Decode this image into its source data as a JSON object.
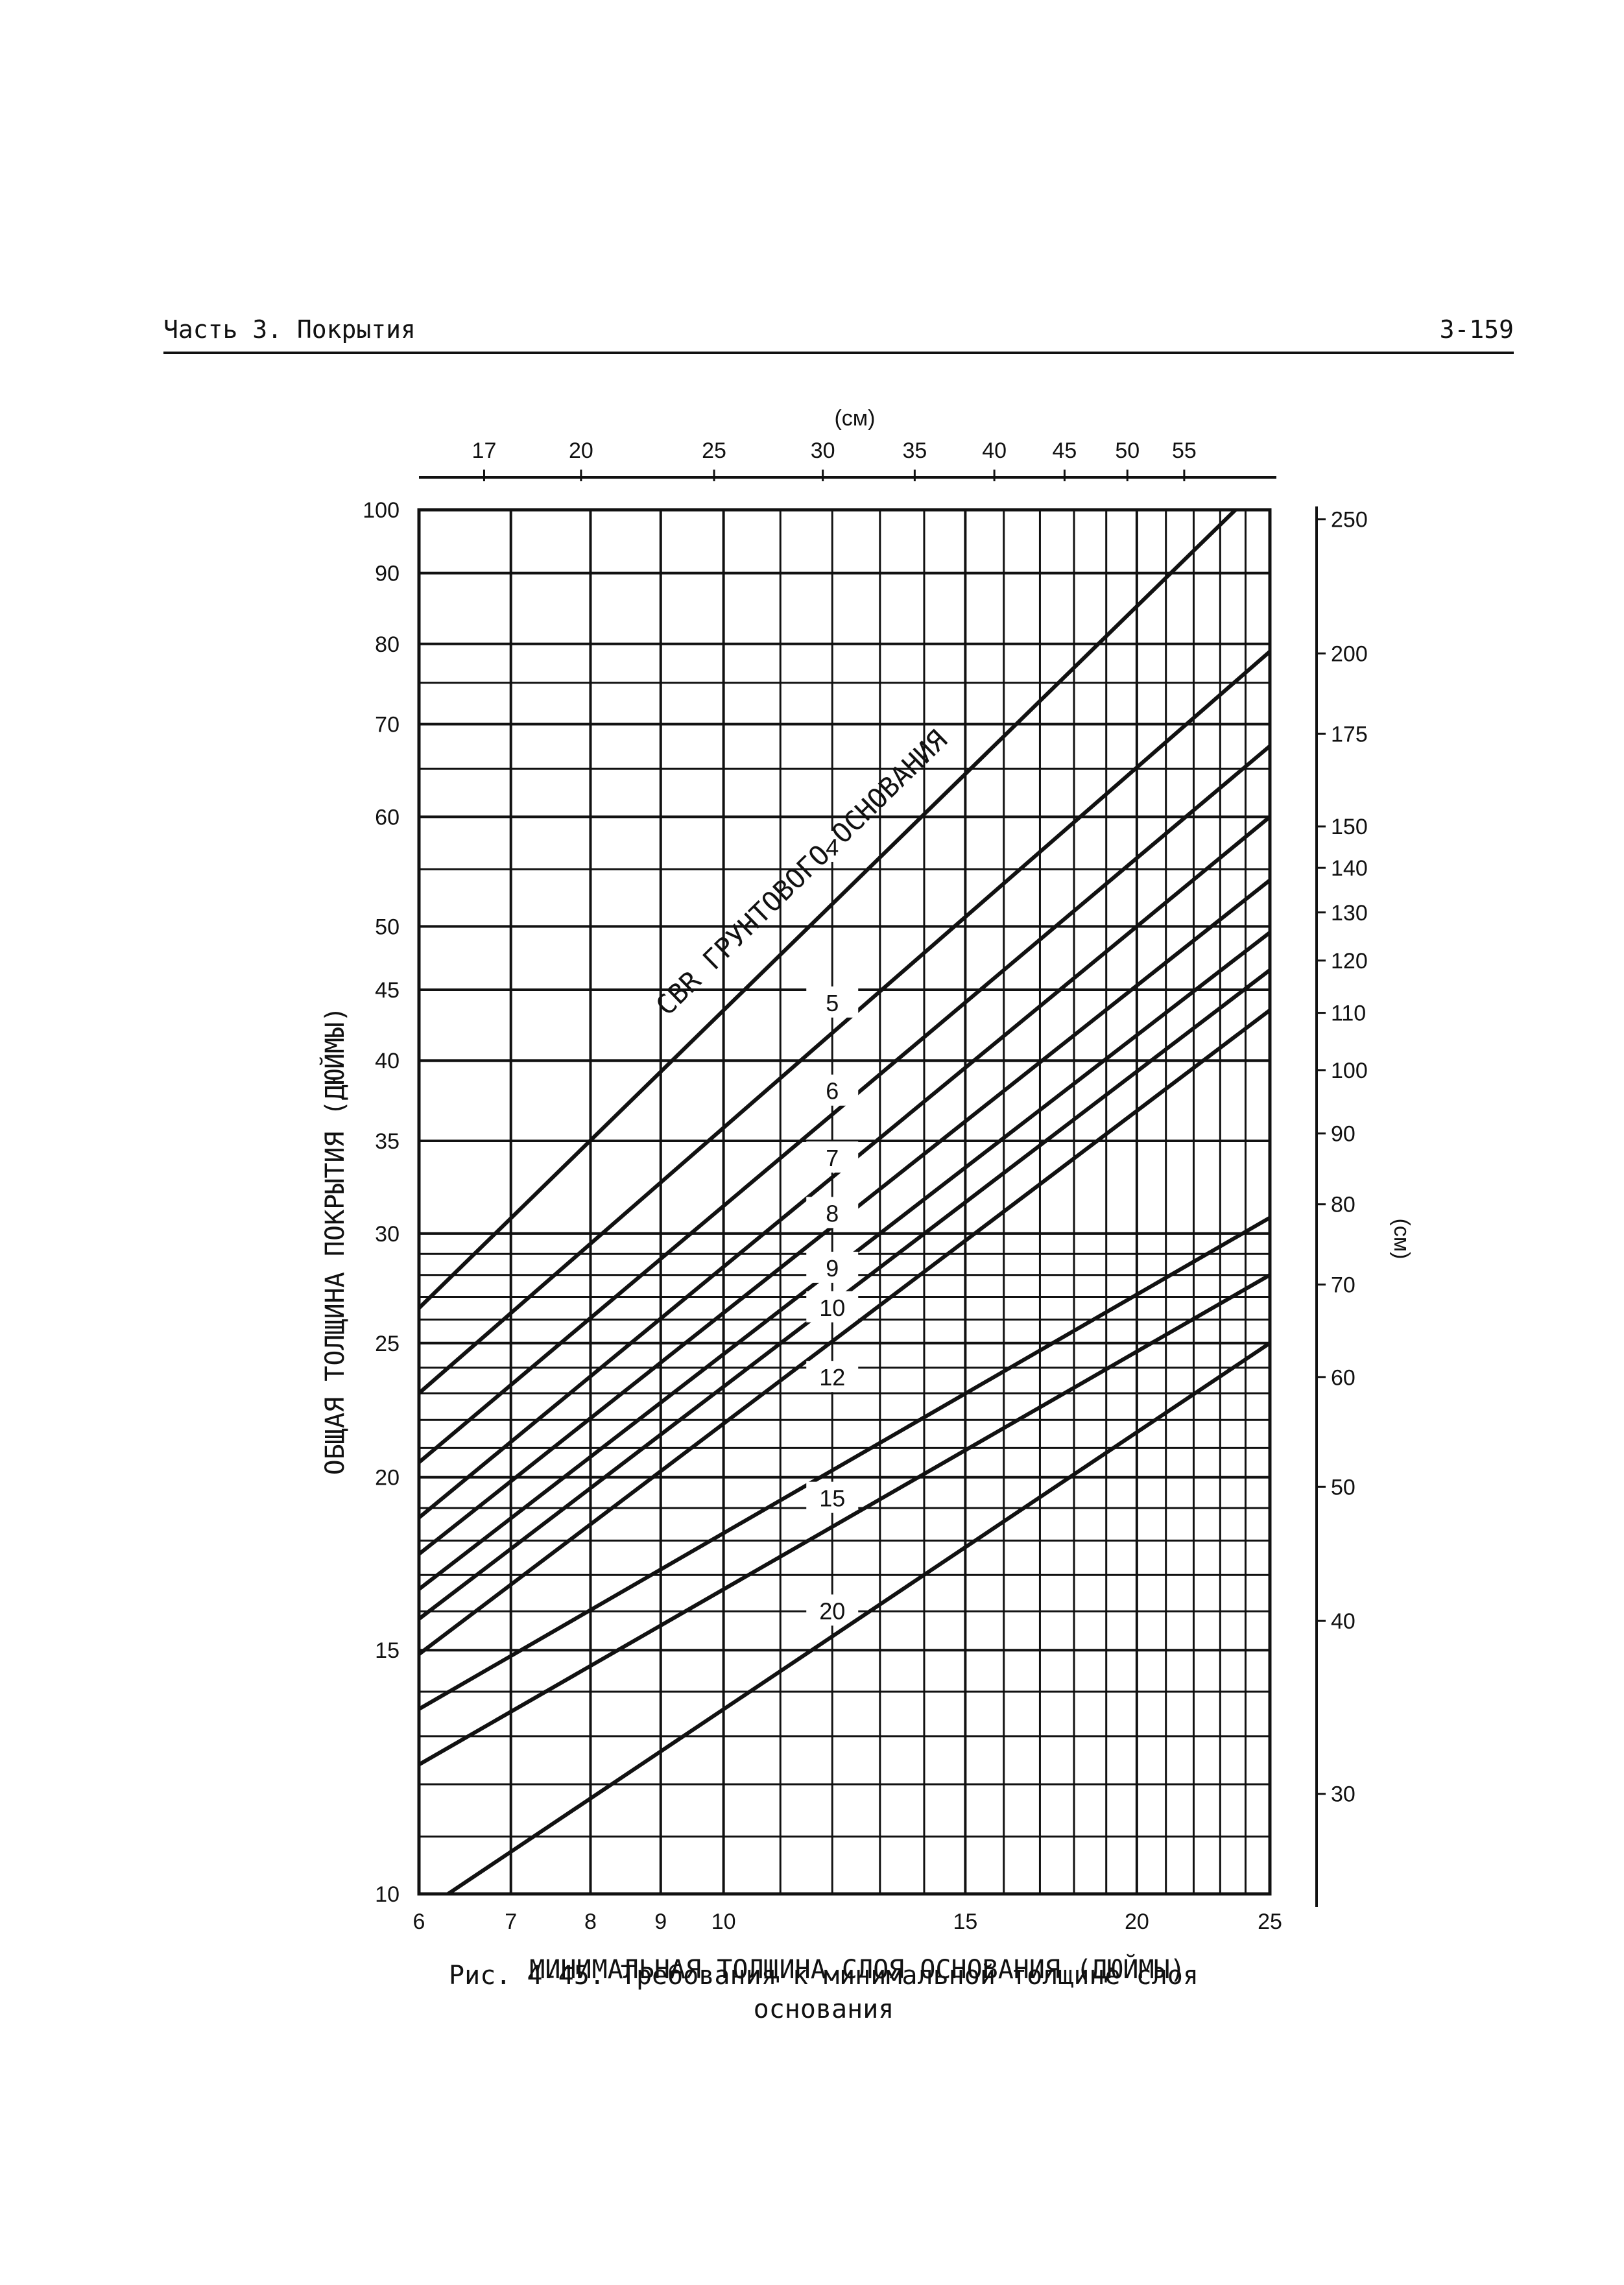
{
  "header": {
    "left": "Часть 3. Покрытия",
    "right": "3-159"
  },
  "caption": {
    "line1": "Рис. 4-45. Требования к минимальной толщине слоя",
    "line2": "основания"
  },
  "chart_data": {
    "type": "line",
    "xlabel": "МИНИМАЛЬНАЯ ТОЛЩИНА СЛОЯ ОСНОВАНИЯ (ДЮЙМЫ)",
    "ylabel": "ОБЩАЯ ТОЛЩИНА ПОКРЫТИЯ (ДЮЙМЫ)",
    "x_top_label": "(см)",
    "y_right_label": "(см)",
    "x_scale": "log",
    "y_scale": "log",
    "xlim": [
      6,
      25
    ],
    "ylim": [
      10,
      100
    ],
    "grid": true,
    "series_group_label": "CBR ГРУНТОВОГО ОСНОВАНИЯ",
    "x_ticks": [
      {
        "value": 6,
        "label": "6"
      },
      {
        "value": 7,
        "label": "7"
      },
      {
        "value": 8,
        "label": "8"
      },
      {
        "value": 9,
        "label": "9"
      },
      {
        "value": 10,
        "label": "10"
      },
      {
        "value": 15,
        "label": "15"
      },
      {
        "value": 20,
        "label": "20"
      },
      {
        "value": 25,
        "label": "25"
      }
    ],
    "x_top_ticks": [
      {
        "value": 17,
        "label": "17"
      },
      {
        "value": 20,
        "label": "20"
      },
      {
        "value": 25,
        "label": "25"
      },
      {
        "value": 30,
        "label": "30"
      },
      {
        "value": 35,
        "label": "35"
      },
      {
        "value": 40,
        "label": "40"
      },
      {
        "value": 45,
        "label": "45"
      },
      {
        "value": 50,
        "label": "50"
      },
      {
        "value": 55,
        "label": "55"
      }
    ],
    "y_ticks": [
      {
        "value": 10,
        "label": "10"
      },
      {
        "value": 15,
        "label": "15"
      },
      {
        "value": 20,
        "label": "20"
      },
      {
        "value": 25,
        "label": "25"
      },
      {
        "value": 30,
        "label": "30"
      },
      {
        "value": 35,
        "label": "35"
      },
      {
        "value": 40,
        "label": "40"
      },
      {
        "value": 45,
        "label": "45"
      },
      {
        "value": 50,
        "label": "50"
      },
      {
        "value": 60,
        "label": "60"
      },
      {
        "value": 70,
        "label": "70"
      },
      {
        "value": 80,
        "label": "80"
      },
      {
        "value": 90,
        "label": "90"
      },
      {
        "value": 100,
        "label": "100"
      }
    ],
    "y_right_ticks": [
      {
        "value": 30,
        "label": "30"
      },
      {
        "value": 40,
        "label": "40"
      },
      {
        "value": 50,
        "label": "50"
      },
      {
        "value": 60,
        "label": "60"
      },
      {
        "value": 70,
        "label": "70"
      },
      {
        "value": 80,
        "label": "80"
      },
      {
        "value": 90,
        "label": "90"
      },
      {
        "value": 100,
        "label": "100"
      },
      {
        "value": 110,
        "label": "110"
      },
      {
        "value": 120,
        "label": "120"
      },
      {
        "value": 130,
        "label": "130"
      },
      {
        "value": 140,
        "label": "140"
      },
      {
        "value": 150,
        "label": "150"
      },
      {
        "value": 175,
        "label": "175"
      },
      {
        "value": 200,
        "label": "200"
      },
      {
        "value": 250,
        "label": "250"
      }
    ],
    "x_grid": [
      6,
      7,
      8,
      9,
      10,
      11,
      12,
      13,
      14,
      15,
      16,
      17,
      18,
      19,
      20,
      21,
      22,
      23,
      24,
      25
    ],
    "y_grid": [
      10,
      11,
      12,
      13,
      14,
      15,
      16,
      17,
      18,
      19,
      20,
      21,
      22,
      23,
      24,
      25,
      26,
      27,
      28,
      29,
      30,
      35,
      40,
      45,
      50,
      55,
      60,
      65,
      70,
      75,
      80,
      90,
      100
    ],
    "series": [
      {
        "name": "4",
        "points": [
          [
            6,
            26.5
          ],
          [
            23.6,
            100
          ]
        ],
        "label_at": [
          12,
          57
        ]
      },
      {
        "name": "5",
        "points": [
          [
            6,
            23
          ],
          [
            25,
            79
          ]
        ],
        "label_at": [
          12,
          44
        ]
      },
      {
        "name": "6",
        "points": [
          [
            6,
            20.5
          ],
          [
            25,
            67.5
          ]
        ],
        "label_at": [
          12,
          38
        ]
      },
      {
        "name": "7",
        "points": [
          [
            6,
            18.7
          ],
          [
            25,
            60
          ]
        ],
        "label_at": [
          12,
          34
        ]
      },
      {
        "name": "8",
        "points": [
          [
            6,
            17.6
          ],
          [
            25,
            54
          ]
        ],
        "label_at": [
          12,
          31
        ]
      },
      {
        "name": "9",
        "points": [
          [
            6,
            16.6
          ],
          [
            25,
            49.5
          ]
        ],
        "label_at": [
          12,
          28.3
        ]
      },
      {
        "name": "10",
        "points": [
          [
            6,
            15.8
          ],
          [
            25,
            46.5
          ]
        ],
        "label_at": [
          12,
          26.5
        ]
      },
      {
        "name": "12",
        "points": [
          [
            6,
            14.9
          ],
          [
            25,
            43.5
          ]
        ],
        "label_at": [
          12,
          23.6
        ]
      },
      {
        "name": "15",
        "points": [
          [
            6,
            13.6
          ],
          [
            25,
            30.8
          ]
        ],
        "label_at": [
          12,
          19.3
        ]
      },
      {
        "name": "20",
        "points": [
          [
            6,
            12.4
          ],
          [
            25,
            28
          ]
        ],
        "label_at": [
          12,
          16
        ]
      },
      {
        "name": "",
        "points": [
          [
            6.3,
            10
          ],
          [
            25,
            25
          ]
        ],
        "label_at": null
      }
    ]
  }
}
